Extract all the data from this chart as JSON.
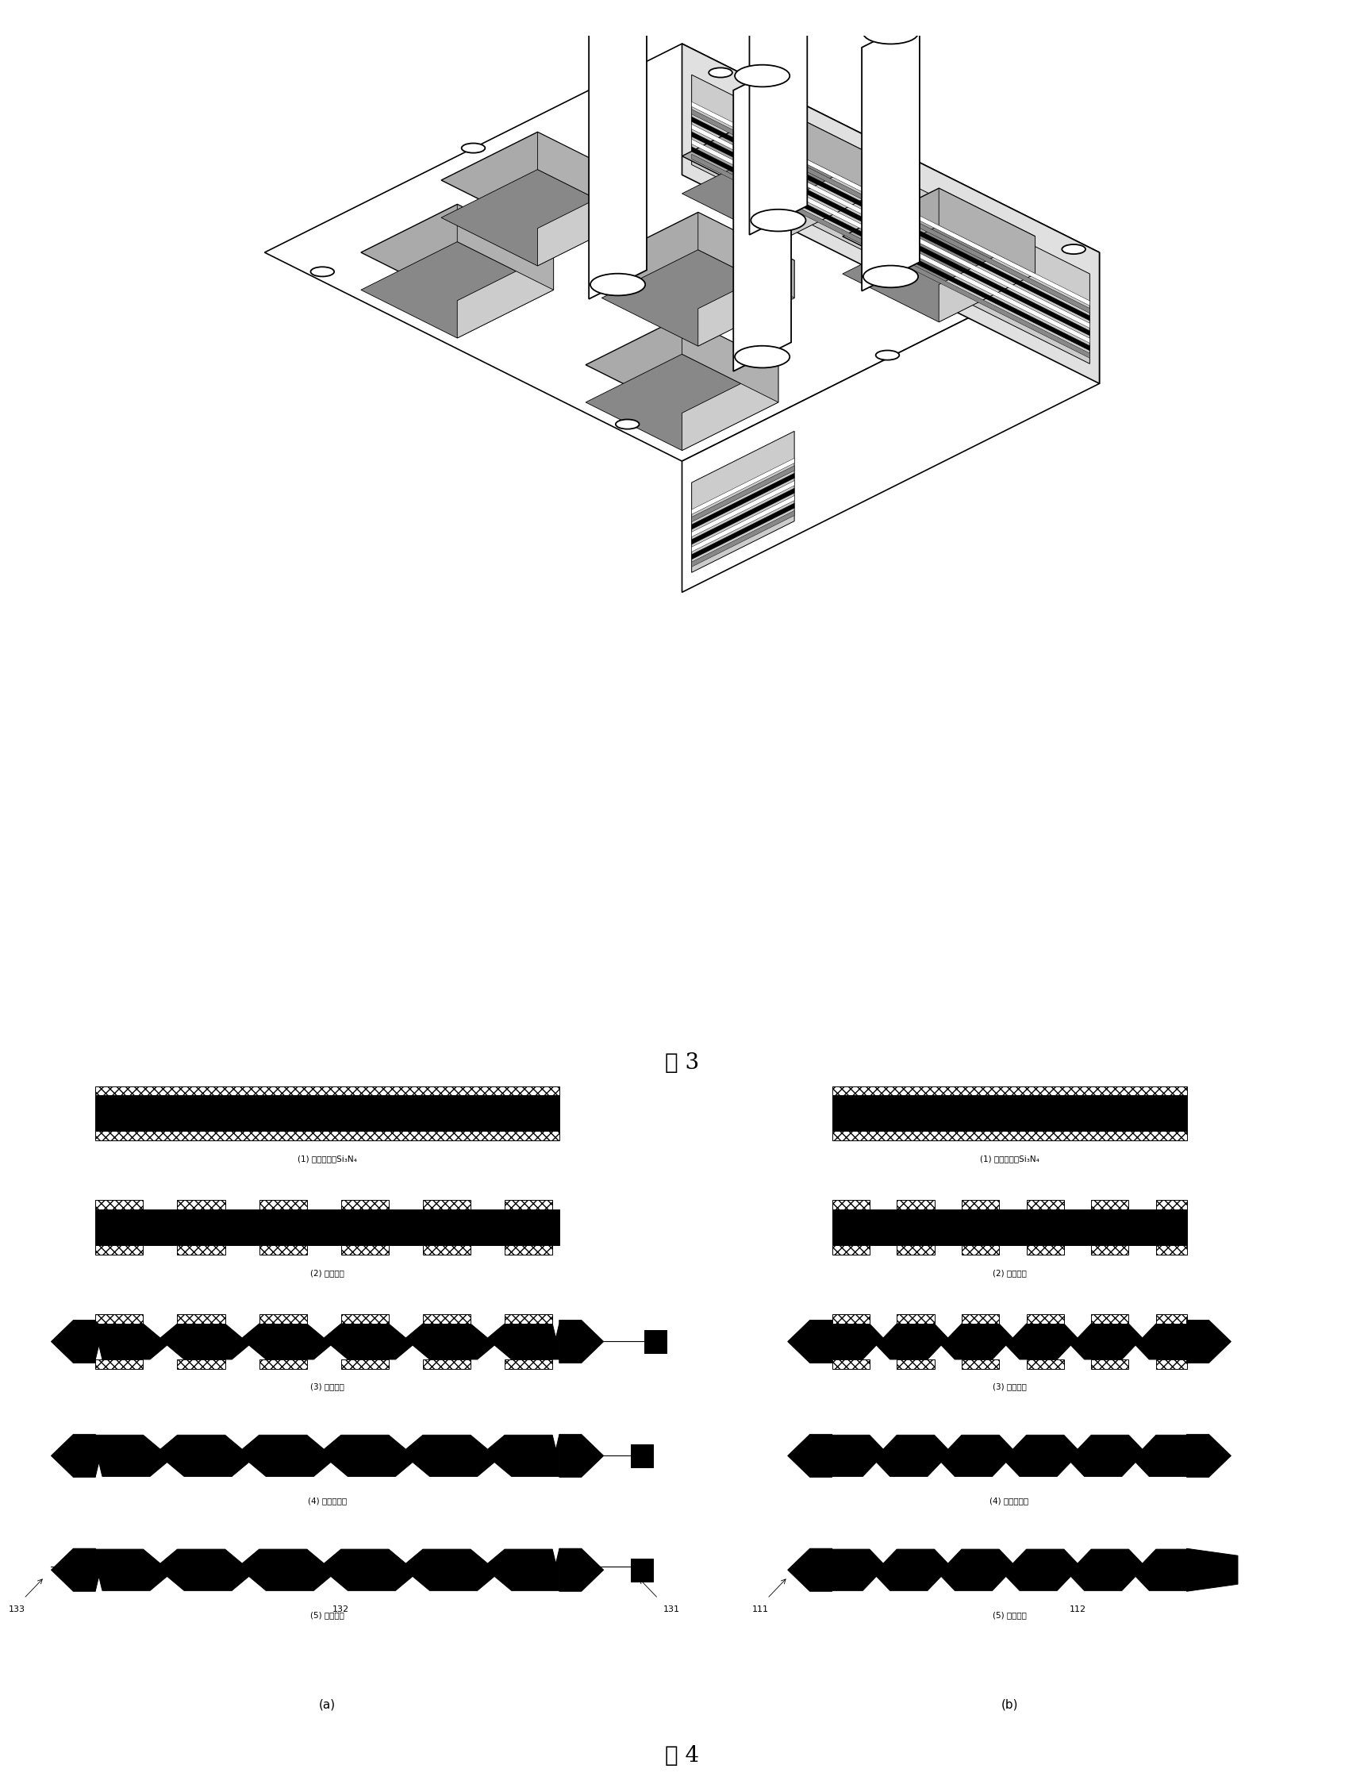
{
  "fig3_label": "图 3",
  "fig4_label": "图 4",
  "col_a_label": "(a)",
  "col_b_label": "(b)",
  "step1_label": "(1) 氧化并淀积Si₃N₄",
  "step2_label": "(2) 双面光刻",
  "step3_label": "(3) 体硅腐蚀",
  "step4_label": "(4) 溅射金属层",
  "step5_label": "(5) 焊接导线",
  "ref_133": "133",
  "ref_132": "132",
  "ref_131": "131",
  "ref_111": "111",
  "ref_112": "112",
  "background": "#ffffff"
}
